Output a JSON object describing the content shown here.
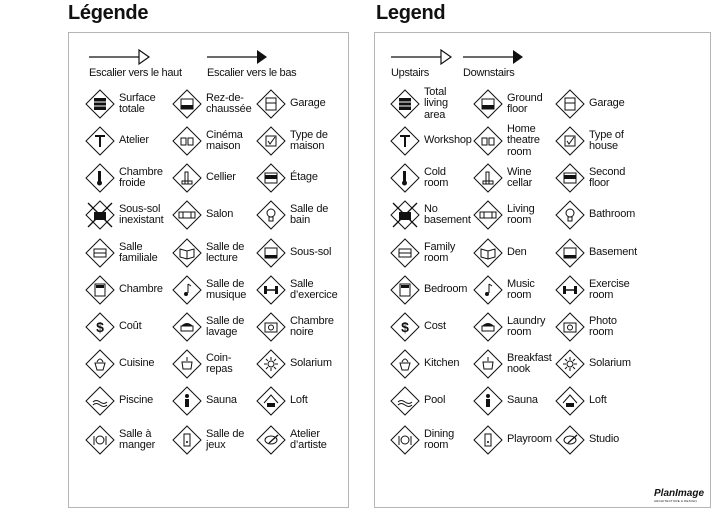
{
  "left": {
    "title": "Légende",
    "upstairs_label": "Escalier vers le haut",
    "downstairs_label": "Escalier vers le bas",
    "items": [
      {
        "label": "Surface\ntotale",
        "icon": "total-area-icon"
      },
      {
        "label": "Rez-de-\nchaussée",
        "icon": "ground-floor-icon"
      },
      {
        "label": "Garage",
        "icon": "garage-icon"
      },
      {
        "label": "Atelier",
        "icon": "hammer-icon"
      },
      {
        "label": "Cinéma\nmaison",
        "icon": "home-theatre-icon"
      },
      {
        "label": "Type de\nmaison",
        "icon": "checkbox-icon"
      },
      {
        "label": "Chambre\nfroide",
        "icon": "thermometer-icon"
      },
      {
        "label": "Cellier",
        "icon": "wine-icon"
      },
      {
        "label": "Étage",
        "icon": "second-floor-icon"
      },
      {
        "label": "Sous-sol\ninexistant",
        "icon": "no-basement-icon"
      },
      {
        "label": "Salon",
        "icon": "sofa-icon"
      },
      {
        "label": "Salle de\nbain",
        "icon": "bathroom-icon"
      },
      {
        "label": "Salle\nfamiliale",
        "icon": "family-room-icon"
      },
      {
        "label": "Salle de\nlecture",
        "icon": "book-icon"
      },
      {
        "label": "Sous-sol",
        "icon": "basement-icon"
      },
      {
        "label": "Chambre",
        "icon": "bed-icon"
      },
      {
        "label": "Salle de\nmusique",
        "icon": "music-note-icon"
      },
      {
        "label": "Salle\nd’exercice",
        "icon": "dumbbell-icon"
      },
      {
        "label": "Coût",
        "icon": "dollar-icon"
      },
      {
        "label": "Salle de\nlavage",
        "icon": "laundry-icon"
      },
      {
        "label": "Chambre\nnoire",
        "icon": "photo-icon"
      },
      {
        "label": "Cuisine",
        "icon": "kitchen-icon"
      },
      {
        "label": "Coin-\nrepas",
        "icon": "breakfast-icon"
      },
      {
        "label": "Solarium",
        "icon": "sun-icon"
      },
      {
        "label": "Piscine",
        "icon": "pool-icon"
      },
      {
        "label": "Sauna",
        "icon": "sauna-icon"
      },
      {
        "label": "Loft",
        "icon": "loft-icon"
      },
      {
        "label": "Salle à\nmanger",
        "icon": "dining-icon"
      },
      {
        "label": "Salle de\njeux",
        "icon": "playroom-icon"
      },
      {
        "label": "Atelier\nd’artiste",
        "icon": "palette-icon"
      }
    ]
  },
  "right": {
    "title": "Legend",
    "upstairs_label": "Upstairs",
    "downstairs_label": "Downstairs",
    "items": [
      {
        "label": "Total\nliving\narea",
        "icon": "total-area-icon"
      },
      {
        "label": "Ground\nfloor",
        "icon": "ground-floor-icon"
      },
      {
        "label": "Garage",
        "icon": "garage-icon"
      },
      {
        "label": "Workshop",
        "icon": "hammer-icon"
      },
      {
        "label": "Home\ntheatre\nroom",
        "icon": "home-theatre-icon"
      },
      {
        "label": "Type of\nhouse",
        "icon": "checkbox-icon"
      },
      {
        "label": "Cold\nroom",
        "icon": "thermometer-icon"
      },
      {
        "label": "Wine\ncellar",
        "icon": "wine-icon"
      },
      {
        "label": "Second\nfloor",
        "icon": "second-floor-icon"
      },
      {
        "label": "No\nbasement",
        "icon": "no-basement-icon"
      },
      {
        "label": "Living\nroom",
        "icon": "sofa-icon"
      },
      {
        "label": "Bathroom",
        "icon": "bathroom-icon"
      },
      {
        "label": "Family\nroom",
        "icon": "family-room-icon"
      },
      {
        "label": "Den",
        "icon": "book-icon"
      },
      {
        "label": "Basement",
        "icon": "basement-icon"
      },
      {
        "label": "Bedroom",
        "icon": "bed-icon"
      },
      {
        "label": "Music\nroom",
        "icon": "music-note-icon"
      },
      {
        "label": "Exercise\nroom",
        "icon": "dumbbell-icon"
      },
      {
        "label": "Cost",
        "icon": "dollar-icon"
      },
      {
        "label": "Laundry\nroom",
        "icon": "laundry-icon"
      },
      {
        "label": "Photo\nroom",
        "icon": "photo-icon"
      },
      {
        "label": "Kitchen",
        "icon": "kitchen-icon"
      },
      {
        "label": "Breakfast\nnook",
        "icon": "breakfast-icon"
      },
      {
        "label": "Solarium",
        "icon": "sun-icon"
      },
      {
        "label": "Pool",
        "icon": "pool-icon"
      },
      {
        "label": "Sauna",
        "icon": "sauna-icon"
      },
      {
        "label": "Loft",
        "icon": "loft-icon"
      },
      {
        "label": "Dining\nroom",
        "icon": "dining-icon"
      },
      {
        "label": "Playroom",
        "icon": "playroom-icon"
      },
      {
        "label": "Studio",
        "icon": "palette-icon"
      }
    ]
  },
  "logo": {
    "name": "PlanImage",
    "tagline": "ARCHITECTURE & DESIGN"
  }
}
